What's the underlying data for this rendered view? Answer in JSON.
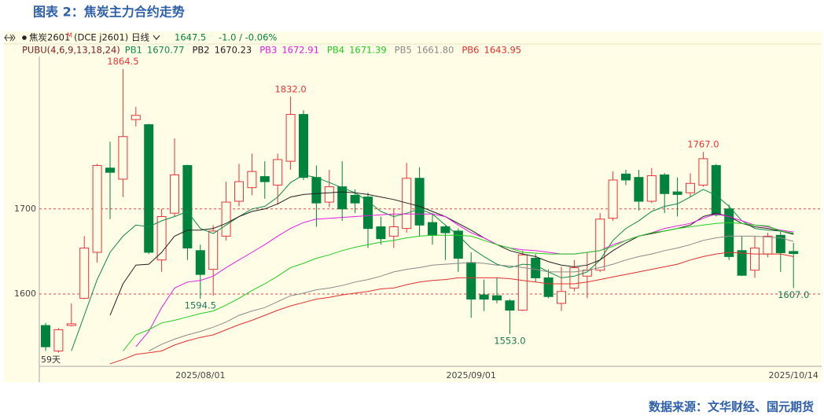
{
  "chart_data": {
    "type": "candlestick",
    "title": "图表 2：焦炭主力合约走势",
    "source": "数据来源：文华财经、国元期货",
    "instrument": {
      "symbol": "焦炭2601",
      "flag": "M",
      "code": "(DCE j2601)",
      "period": "日线",
      "last": 1647.5,
      "change": "-1.0 / -0.06%"
    },
    "indicator": "PUBU(4,6,9,13,18,24)",
    "bars_shown": "59天",
    "categories": [
      null,
      null,
      null,
      null,
      null,
      null,
      null,
      null,
      null,
      null,
      null,
      null,
      "2025/08/01",
      null,
      null,
      null,
      null,
      null,
      null,
      null,
      null,
      null,
      null,
      null,
      null,
      null,
      null,
      null,
      null,
      null,
      null,
      null,
      null,
      "2025/09/01",
      null,
      null,
      null,
      null,
      null,
      null,
      null,
      null,
      null,
      null,
      null,
      null,
      null,
      null,
      null,
      null,
      null,
      null,
      null,
      null,
      null,
      null,
      null,
      null,
      "2025/10/14"
    ],
    "open": [
      1563,
      1533,
      1563,
      1595,
      1649,
      1748,
      1735,
      1805,
      1799,
      1640,
      1695,
      1751,
      1651,
      1629,
      1668,
      1709,
      1725,
      1738,
      1728,
      1756,
      1811,
      1737,
      1708,
      1726,
      1716,
      1714,
      1679,
      1668,
      1677,
      1736,
      1684,
      1679,
      1674,
      1637,
      1599,
      1598,
      1592,
      1581,
      1642,
      1619,
      1589,
      1607,
      1621,
      1628,
      1689,
      1741,
      1737,
      1709,
      1740,
      1720,
      1719,
      1728,
      1751,
      1700,
      1651,
      1628,
      1647,
      1669,
      1650
    ],
    "high": [
      1566,
      1560,
      1589,
      1668,
      1753,
      1779,
      1864.5,
      1820,
      1800,
      1700,
      1783,
      1752,
      1658,
      1681,
      1732,
      1753,
      1765,
      1756,
      1765,
      1832,
      1816,
      1751,
      1746,
      1756,
      1723,
      1719,
      1691,
      1700,
      1754,
      1749,
      1695,
      1681,
      1677,
      1649,
      1617,
      1619,
      1594,
      1651,
      1647,
      1629,
      1632,
      1640,
      1649,
      1695,
      1744,
      1746,
      1746,
      1748,
      1742,
      1737,
      1742,
      1767,
      1753,
      1705,
      1668,
      1668,
      1672,
      1675,
      1660
    ],
    "low": [
      1533,
      1531,
      1562,
      1594,
      1637,
      1688,
      1714,
      1797,
      1647,
      1626,
      1691,
      1640,
      1594.5,
      1598,
      1663,
      1703,
      1716,
      1712,
      1705,
      1746,
      1734,
      1679,
      1702,
      1686,
      1695,
      1654,
      1658,
      1654,
      1672,
      1668,
      1658,
      1640,
      1626,
      1572,
      1580,
      1589,
      1553,
      1580,
      1614,
      1595,
      1580,
      1603,
      1595,
      1626,
      1686,
      1728,
      1698,
      1707,
      1695,
      1691,
      1714,
      1726,
      1691,
      1640,
      1621,
      1619,
      1643,
      1626,
      1607
    ],
    "close": [
      1538,
      1558,
      1565,
      1654,
      1751,
      1743,
      1785,
      1810,
      1649,
      1691,
      1740,
      1654,
      1623,
      1674,
      1708,
      1732,
      1744,
      1732,
      1758,
      1811,
      1737,
      1707,
      1726,
      1700,
      1707,
      1677,
      1665,
      1679,
      1736,
      1681,
      1669,
      1672,
      1642,
      1594,
      1594,
      1593,
      1581,
      1646,
      1619,
      1597,
      1603,
      1631,
      1628,
      1688,
      1734,
      1734,
      1709,
      1739,
      1718,
      1717,
      1730,
      1759,
      1693,
      1644,
      1622,
      1654,
      1668,
      1648.5,
      1647.5
    ],
    "high_labels": [
      null,
      null,
      null,
      null,
      null,
      null,
      "1864.5",
      null,
      null,
      null,
      null,
      null,
      null,
      null,
      null,
      null,
      null,
      null,
      null,
      "1832.0",
      null,
      null,
      null,
      null,
      null,
      null,
      null,
      null,
      null,
      null,
      null,
      null,
      null,
      null,
      null,
      null,
      null,
      null,
      null,
      null,
      null,
      null,
      null,
      null,
      null,
      null,
      null,
      null,
      null,
      null,
      null,
      "1767.0",
      null,
      null,
      null,
      null,
      null,
      null,
      null
    ],
    "low_labels": [
      null,
      null,
      null,
      null,
      null,
      null,
      null,
      null,
      null,
      null,
      null,
      null,
      "1594.5",
      null,
      null,
      null,
      null,
      null,
      null,
      null,
      null,
      null,
      null,
      null,
      null,
      null,
      null,
      null,
      null,
      null,
      null,
      null,
      null,
      null,
      null,
      null,
      "1553.0",
      null,
      null,
      null,
      null,
      null,
      null,
      null,
      null,
      null,
      null,
      null,
      null,
      null,
      null,
      null,
      null,
      null,
      null,
      null,
      null,
      null,
      "1607.0"
    ],
    "up_color": "#e8343a",
    "down_color": "#00843d",
    "high_label_color": "#e8343a",
    "low_label_color": "#1f7a55",
    "ylim": [
      1515,
      1879
    ],
    "yticks": [
      1600,
      1700
    ],
    "grid": true,
    "grid_color": "#e04848",
    "series": [
      {
        "name": "PB1",
        "color": "#0f8a4a",
        "values": [
          null,
          null,
          1533,
          1575,
          1617,
          1649,
          1668,
          1681,
          1679,
          1686,
          1691,
          1697,
          1677,
          1671,
          1681,
          1691,
          1700,
          1703,
          1714,
          1731,
          1740,
          1737,
          1731,
          1725,
          1719,
          1709,
          1697,
          1691,
          1695,
          1700,
          1694,
          1681,
          1669,
          1654,
          1644,
          1635,
          1631,
          1635,
          1634,
          1626,
          1619,
          1621,
          1626,
          1640,
          1663,
          1677,
          1686,
          1697,
          1703,
          1706,
          1714,
          1723,
          1716,
          1703,
          1686,
          1677,
          1675,
          1674,
          1670.77
        ]
      },
      {
        "name": "PB2",
        "color": "#222222",
        "values": [
          null,
          null,
          null,
          null,
          null,
          1575,
          1612,
          1634,
          1635,
          1649,
          1668,
          1675,
          1675,
          1677,
          1683,
          1691,
          1697,
          1700,
          1706,
          1714,
          1717,
          1718,
          1719,
          1720,
          1719,
          1717,
          1714,
          1711,
          1707,
          1703,
          1697,
          1691,
          1683,
          1675,
          1666,
          1658,
          1651,
          1647,
          1644,
          1638,
          1634,
          1632,
          1634,
          1640,
          1651,
          1660,
          1668,
          1671,
          1674,
          1677,
          1681,
          1691,
          1695,
          1691,
          1683,
          1679,
          1677,
          1674,
          1670.23
        ]
      },
      {
        "name": "PB3",
        "color": "#e020e0",
        "values": [
          null,
          null,
          null,
          null,
          null,
          null,
          null,
          1538,
          1556,
          1584,
          1607,
          1614,
          1616,
          1621,
          1631,
          1640,
          1649,
          1658,
          1668,
          1677,
          1684,
          1688,
          1689,
          1690,
          1691,
          1692,
          1693,
          1694,
          1694,
          1694,
          1694,
          1691,
          1681,
          1672,
          1666,
          1658,
          1654,
          1652,
          1651,
          1649,
          1647,
          1647,
          1649,
          1651,
          1658,
          1663,
          1668,
          1672,
          1677,
          1680,
          1683,
          1689,
          1694,
          1691,
          1686,
          1681,
          1679,
          1675,
          1672.91
        ]
      },
      {
        "name": "PB4",
        "color": "#22cc22",
        "values": [
          null,
          null,
          null,
          null,
          null,
          null,
          1533,
          1552,
          1558,
          1566,
          1569,
          1573,
          1577,
          1580,
          1587,
          1595,
          1604,
          1612,
          1621,
          1631,
          1636,
          1642,
          1646,
          1651,
          1655,
          1658,
          1661,
          1663,
          1666,
          1668,
          1669,
          1669,
          1669,
          1668,
          1663,
          1658,
          1654,
          1649,
          1648,
          1647,
          1647,
          1647,
          1649,
          1651,
          1656,
          1663,
          1668,
          1672,
          1674,
          1677,
          1679,
          1681,
          1683,
          1684,
          1683,
          1681,
          1680,
          1674,
          1671.39
        ]
      },
      {
        "name": "PB5",
        "color": "#8a8a8a",
        "values": [
          null,
          null,
          null,
          null,
          null,
          null,
          null,
          null,
          1533,
          1541,
          1547,
          1552,
          1556,
          1561,
          1567,
          1575,
          1580,
          1584,
          1591,
          1598,
          1601,
          1605,
          1607,
          1610,
          1614,
          1617,
          1621,
          1626,
          1629,
          1631,
          1634,
          1635,
          1636,
          1637,
          1636,
          1634,
          1633,
          1631,
          1629,
          1626,
          1626,
          1626,
          1628,
          1631,
          1635,
          1640,
          1644,
          1647,
          1651,
          1654,
          1658,
          1663,
          1666,
          1668,
          1668,
          1668,
          1667,
          1666,
          1661.8
        ],
        "value_labels": [
          null,
          null,
          null,
          null,
          null,
          null,
          null,
          null,
          null,
          null,
          null,
          null,
          null,
          null,
          null,
          null,
          null,
          null,
          null,
          null,
          null,
          null,
          null,
          null,
          null,
          null,
          null,
          null,
          null,
          null,
          null,
          null,
          null,
          null,
          null,
          null,
          null,
          null,
          null,
          null,
          null,
          null,
          null,
          null,
          null,
          null,
          null,
          null,
          null,
          null,
          null,
          null,
          null,
          null,
          null,
          null,
          null,
          null,
          "1661.80"
        ]
      },
      {
        "name": "PB6",
        "color": "#e03030",
        "values": [
          null,
          null,
          null,
          null,
          null,
          1518,
          1523,
          1529,
          1531,
          1533,
          1540,
          1545,
          1549,
          1552,
          1558,
          1564,
          1569,
          1575,
          1581,
          1586,
          1590,
          1594,
          1596,
          1599,
          1601,
          1603,
          1606,
          1607,
          1611,
          1614,
          1616,
          1617,
          1619,
          1619,
          1619,
          1619,
          1618,
          1616,
          1614,
          1612,
          1612,
          1612,
          1614,
          1617,
          1620,
          1623,
          1626,
          1629,
          1632,
          1635,
          1640,
          1644,
          1647,
          1649,
          1648,
          1647,
          1647,
          1647,
          1643.95
        ]
      }
    ]
  }
}
